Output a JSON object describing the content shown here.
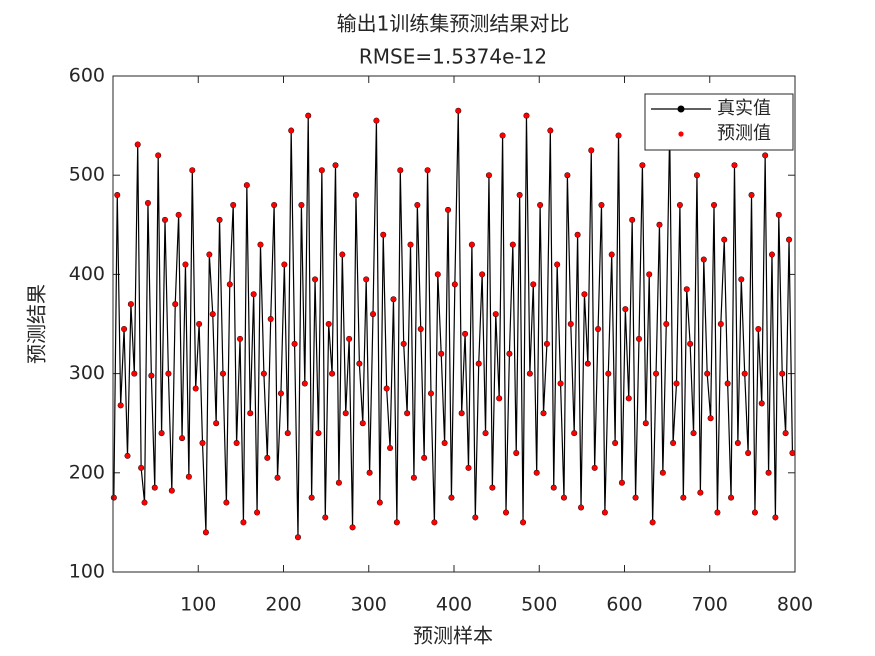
{
  "chart_data": {
    "type": "line",
    "title": "输出1训练集预测结果对比",
    "subtitle": "RMSE=1.5374e-12",
    "x_label": "预测样本",
    "y_label": "预测结果",
    "xlim": [
      0,
      800
    ],
    "ylim": [
      100,
      600
    ],
    "xticks": [
      100,
      200,
      300,
      400,
      500,
      600,
      700,
      800
    ],
    "yticks": [
      100,
      200,
      300,
      400,
      500,
      600
    ],
    "grid": false,
    "legend": "top-right",
    "x": [
      1,
      5,
      9,
      13,
      17,
      21,
      25,
      29,
      33,
      37,
      41,
      45,
      49,
      53,
      57,
      61,
      65,
      69,
      73,
      77,
      81,
      85,
      89,
      93,
      97,
      101,
      105,
      109,
      113,
      117,
      121,
      125,
      129,
      133,
      137,
      141,
      145,
      149,
      153,
      157,
      161,
      165,
      169,
      173,
      177,
      181,
      185,
      189,
      193,
      197,
      201,
      205,
      209,
      213,
      217,
      221,
      225,
      229,
      233,
      237,
      241,
      245,
      249,
      253,
      257,
      261,
      265,
      269,
      273,
      277,
      281,
      285,
      289,
      293,
      297,
      301,
      305,
      309,
      313,
      317,
      321,
      325,
      329,
      333,
      337,
      341,
      345,
      349,
      353,
      357,
      361,
      365,
      369,
      373,
      377,
      381,
      385,
      389,
      393,
      397,
      401,
      405,
      409,
      413,
      417,
      421,
      425,
      429,
      433,
      437,
      441,
      445,
      449,
      453,
      457,
      461,
      465,
      469,
      473,
      477,
      481,
      485,
      489,
      493,
      497,
      501,
      505,
      509,
      513,
      517,
      521,
      525,
      529,
      533,
      537,
      541,
      545,
      549,
      553,
      557,
      561,
      565,
      569,
      573,
      577,
      581,
      585,
      589,
      593,
      597,
      601,
      605,
      609,
      613,
      617,
      621,
      625,
      629,
      633,
      637,
      641,
      645,
      649,
      653,
      657,
      661,
      665,
      669,
      673,
      677,
      681,
      685,
      689,
      693,
      697,
      701,
      705,
      709,
      713,
      717,
      721,
      725,
      729,
      733,
      737,
      741,
      745,
      749,
      753,
      757,
      761,
      765,
      769,
      773,
      777,
      781,
      785,
      789,
      793,
      797
    ],
    "series": [
      {
        "name": "真实值",
        "color": "#000000",
        "marker": "circle",
        "line": true,
        "values": [
          175,
          480,
          268,
          345,
          217,
          370,
          300,
          531,
          205,
          170,
          472,
          298,
          185,
          520,
          240,
          455,
          300,
          182,
          370,
          460,
          235,
          410,
          196,
          505,
          285,
          350,
          230,
          140,
          420,
          360,
          250,
          455,
          300,
          170,
          390,
          470,
          230,
          335,
          150,
          490,
          260,
          380,
          160,
          430,
          300,
          215,
          355,
          470,
          195,
          280,
          410,
          240,
          545,
          330,
          135,
          470,
          290,
          560,
          175,
          395,
          240,
          505,
          155,
          350,
          300,
          510,
          190,
          420,
          260,
          335,
          145,
          480,
          310,
          250,
          395,
          200,
          360,
          555,
          170,
          440,
          285,
          225,
          375,
          150,
          505,
          330,
          260,
          430,
          195,
          470,
          345,
          215,
          505,
          280,
          150,
          400,
          320,
          230,
          465,
          175,
          390,
          565,
          260,
          340,
          205,
          430,
          155,
          310,
          400,
          240,
          500,
          185,
          360,
          275,
          540,
          160,
          320,
          430,
          220,
          480,
          150,
          560,
          300,
          390,
          200,
          470,
          260,
          330,
          545,
          185,
          410,
          290,
          175,
          500,
          350,
          240,
          440,
          165,
          380,
          310,
          525,
          205,
          345,
          470,
          160,
          300,
          420,
          230,
          540,
          190,
          365,
          275,
          455,
          175,
          335,
          510,
          250,
          400,
          150,
          300,
          450,
          200,
          350,
          545,
          230,
          290,
          470,
          175,
          385,
          330,
          240,
          500,
          180,
          415,
          300,
          255,
          470,
          160,
          350,
          435,
          290,
          175,
          510,
          230,
          395,
          300,
          220,
          480,
          160,
          345,
          270,
          520,
          200,
          420,
          155,
          460,
          300,
          240,
          435,
          220
        ]
      },
      {
        "name": "预测值",
        "color": "#ff0000",
        "marker": "dot",
        "line": false,
        "values": [
          175,
          480,
          268,
          345,
          217,
          370,
          300,
          531,
          205,
          170,
          472,
          298,
          185,
          520,
          240,
          455,
          300,
          182,
          370,
          460,
          235,
          410,
          196,
          505,
          285,
          350,
          230,
          140,
          420,
          360,
          250,
          455,
          300,
          170,
          390,
          470,
          230,
          335,
          150,
          490,
          260,
          380,
          160,
          430,
          300,
          215,
          355,
          470,
          195,
          280,
          410,
          240,
          545,
          330,
          135,
          470,
          290,
          560,
          175,
          395,
          240,
          505,
          155,
          350,
          300,
          510,
          190,
          420,
          260,
          335,
          145,
          480,
          310,
          250,
          395,
          200,
          360,
          555,
          170,
          440,
          285,
          225,
          375,
          150,
          505,
          330,
          260,
          430,
          195,
          470,
          345,
          215,
          505,
          280,
          150,
          400,
          320,
          230,
          465,
          175,
          390,
          565,
          260,
          340,
          205,
          430,
          155,
          310,
          400,
          240,
          500,
          185,
          360,
          275,
          540,
          160,
          320,
          430,
          220,
          480,
          150,
          560,
          300,
          390,
          200,
          470,
          260,
          330,
          545,
          185,
          410,
          290,
          175,
          500,
          350,
          240,
          440,
          165,
          380,
          310,
          525,
          205,
          345,
          470,
          160,
          300,
          420,
          230,
          540,
          190,
          365,
          275,
          455,
          175,
          335,
          510,
          250,
          400,
          150,
          300,
          450,
          200,
          350,
          545,
          230,
          290,
          470,
          175,
          385,
          330,
          240,
          500,
          180,
          415,
          300,
          255,
          470,
          160,
          350,
          435,
          290,
          175,
          510,
          230,
          395,
          300,
          220,
          480,
          160,
          345,
          270,
          520,
          200,
          420,
          155,
          460,
          300,
          240,
          435,
          220
        ]
      }
    ]
  }
}
